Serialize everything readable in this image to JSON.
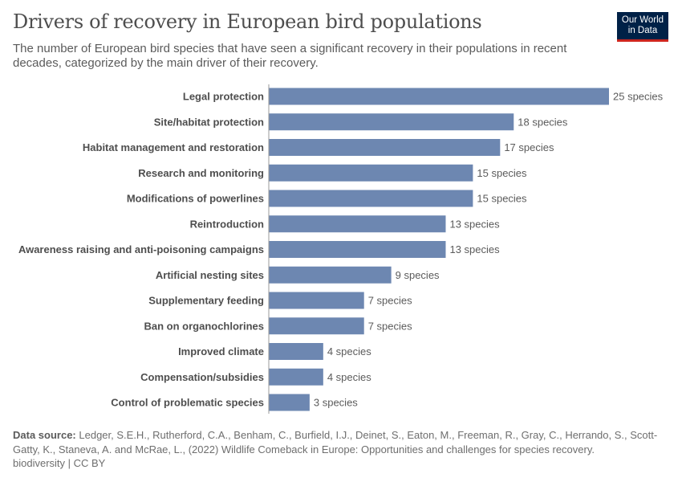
{
  "title": "Drivers of recovery in European bird populations",
  "subtitle": "The number of European bird species that have seen a significant recovery in their populations in recent decades, categorized by the main driver of their recovery.",
  "logo": {
    "line1": "Our World",
    "line2": "in Data"
  },
  "footer": {
    "source_label": "Data source:",
    "source_text": "Ledger, S.E.H., Rutherford, C.A., Benham, C., Burfield, I.J., Deinet, S., Eaton, M., Freeman, R., Gray, C., Herrando, S., Scott-Gatty, K., Staneva, A. and McRae, L., (2022) Wildlife Comeback in Europe: Opportunities and challenges for species recovery.",
    "license": "biodiversity | CC BY"
  },
  "chart_data": {
    "type": "bar",
    "orientation": "horizontal",
    "bar_color": "#6D87B1",
    "value_suffix": " species",
    "categories": [
      "Legal protection",
      "Site/habitat protection",
      "Habitat management and restoration",
      "Research and monitoring",
      "Modifications of powerlines",
      "Reintroduction",
      "Awareness raising and anti-poisoning campaigns",
      "Artificial nesting sites",
      "Supplementary feeding",
      "Ban on organochlorines",
      "Improved climate",
      "Compensation/subsidies",
      "Control of problematic species"
    ],
    "values": [
      25,
      18,
      17,
      15,
      15,
      13,
      13,
      9,
      7,
      7,
      4,
      4,
      3
    ],
    "grid": false
  }
}
